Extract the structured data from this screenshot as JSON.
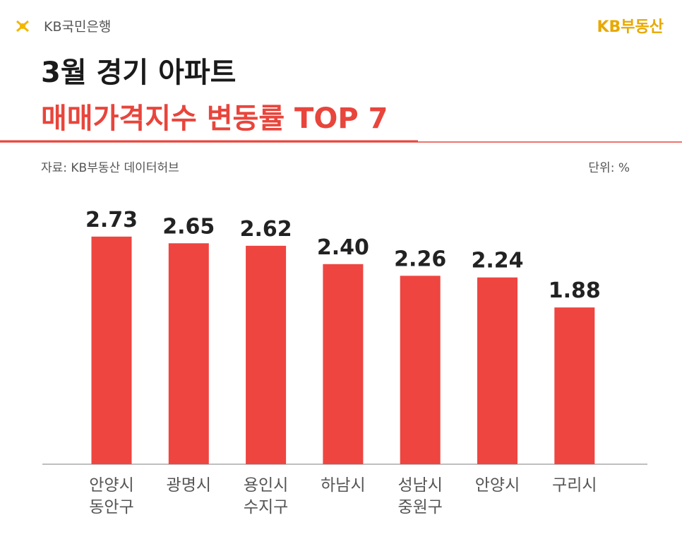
{
  "header": {
    "logo": "KB국민은행",
    "brand": "KB부동산"
  },
  "chart_data": {
    "type": "bar",
    "title": "3월 경기 아파트",
    "subtitle": "매매가격지수 변동률 TOP 7",
    "source": "자료: KB부동산 데이터허브",
    "unit": "단위: %",
    "categories": [
      "안양시 동안구",
      "광명시",
      "용인시 수지구",
      "하남시",
      "성남시 중원구",
      "안양시",
      "구리시"
    ],
    "values": [
      2.73,
      2.65,
      2.62,
      2.4,
      2.26,
      2.24,
      1.88
    ],
    "value_labels": [
      "2.73",
      "2.65",
      "2.62",
      "2.40",
      "2.26",
      "2.24",
      "1.88"
    ],
    "color": "#ee4540"
  }
}
